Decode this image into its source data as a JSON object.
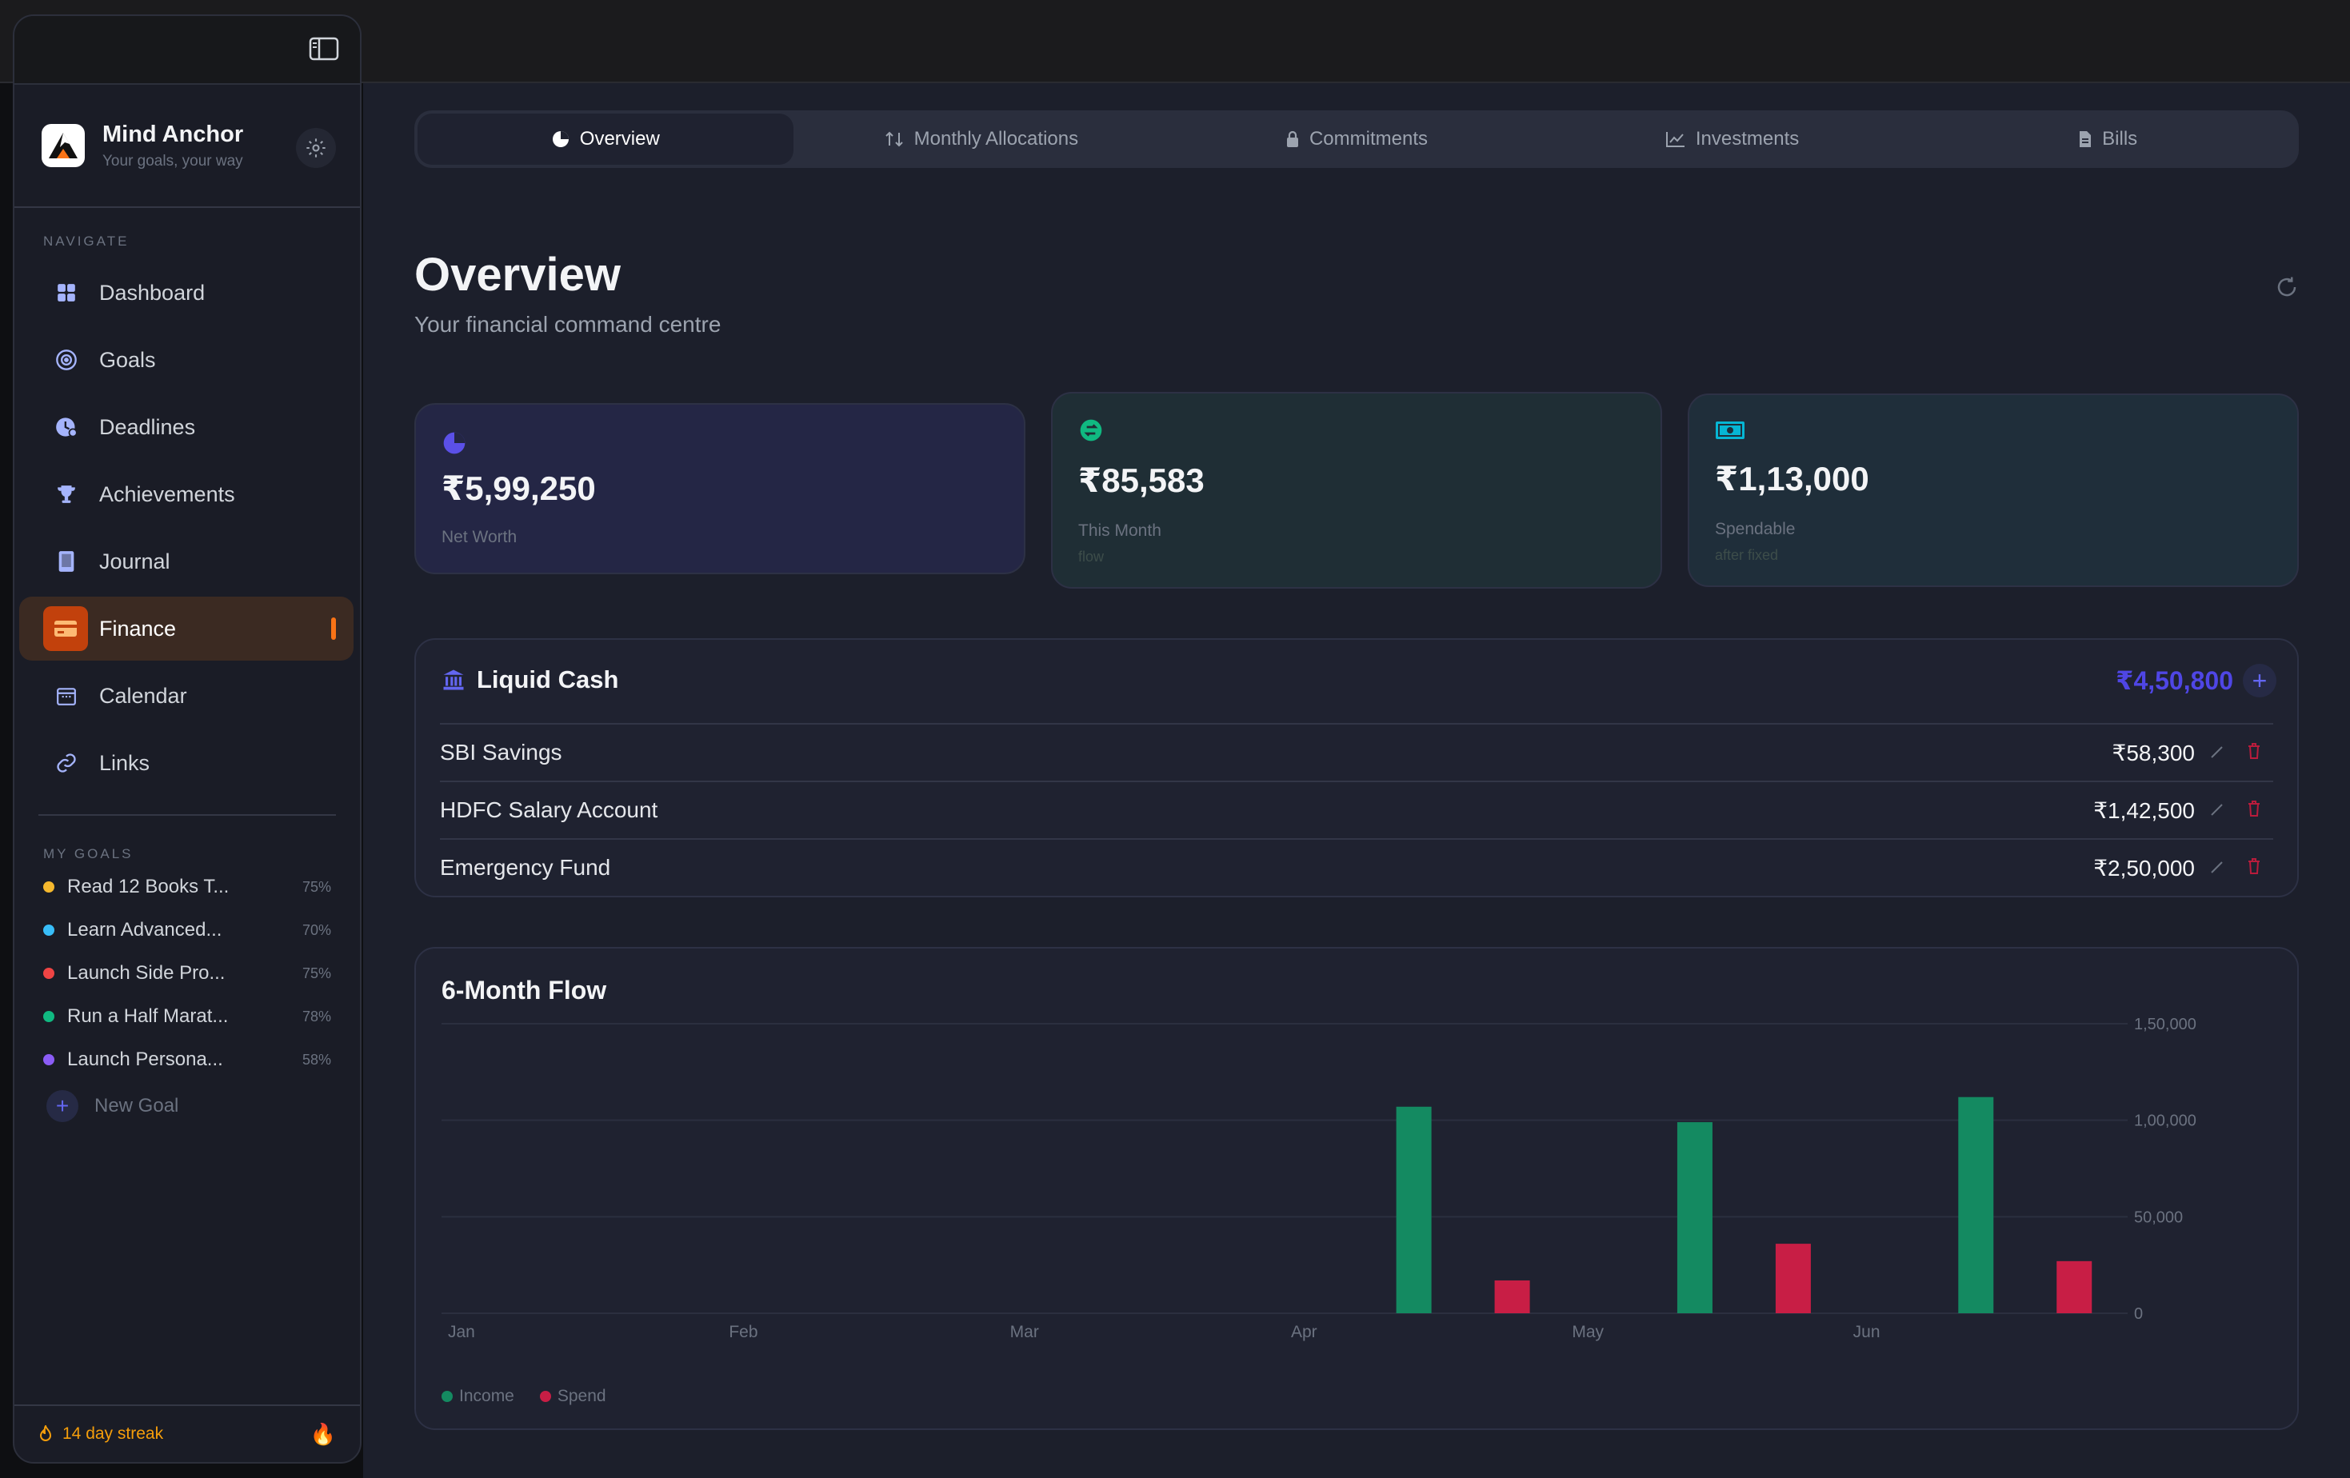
{
  "sidebar": {
    "brand_name": "Mind Anchor",
    "brand_tagline": "Your goals, your way",
    "navigate_label": "NAVIGATE",
    "nav_items": [
      {
        "label": "Dashboard",
        "icon": "grid-icon"
      },
      {
        "label": "Goals",
        "icon": "target-icon"
      },
      {
        "label": "Deadlines",
        "icon": "clock-icon"
      },
      {
        "label": "Achievements",
        "icon": "trophy-icon"
      },
      {
        "label": "Journal",
        "icon": "book-icon"
      },
      {
        "label": "Finance",
        "icon": "card-icon",
        "active": true
      },
      {
        "label": "Calendar",
        "icon": "calendar-icon"
      },
      {
        "label": "Links",
        "icon": "link-icon"
      }
    ],
    "my_goals_label": "MY GOALS",
    "goals": [
      {
        "name": "Read 12 Books T...",
        "pct": "75%",
        "color": "#f5b82e"
      },
      {
        "name": "Learn Advanced...",
        "pct": "70%",
        "color": "#38bdf8"
      },
      {
        "name": "Launch Side Pro...",
        "pct": "75%",
        "color": "#ef4444"
      },
      {
        "name": "Run a Half Marat...",
        "pct": "78%",
        "color": "#10b981"
      },
      {
        "name": "Launch Persona...",
        "pct": "58%",
        "color": "#8b5cf6"
      }
    ],
    "new_goal_label": "New Goal",
    "streak_label": "14 day streak"
  },
  "tabs": [
    {
      "label": "Overview",
      "active": true
    },
    {
      "label": "Monthly Allocations"
    },
    {
      "label": "Commitments"
    },
    {
      "label": "Investments"
    },
    {
      "label": "Bills"
    }
  ],
  "page": {
    "title": "Overview",
    "subtitle": "Your financial command centre"
  },
  "stats": [
    {
      "value": "₹5,99,250",
      "label": "Net Worth",
      "sub": ""
    },
    {
      "value": "₹85,583",
      "label": "This Month",
      "sub": "flow"
    },
    {
      "value": "₹1,13,000",
      "label": "Spendable",
      "sub": "after fixed"
    }
  ],
  "liquid_cash": {
    "title": "Liquid Cash",
    "total": "₹4,50,800",
    "accounts": [
      {
        "name": "SBI Savings",
        "amount": "₹58,300"
      },
      {
        "name": "HDFC Salary Account",
        "amount": "₹1,42,500"
      },
      {
        "name": "Emergency Fund",
        "amount": "₹2,50,000"
      }
    ]
  },
  "flow_chart": {
    "title": "6-Month Flow"
  },
  "chart_data": {
    "type": "bar",
    "categories": [
      "Jan",
      "Feb",
      "Mar",
      "Apr",
      "May",
      "Jun"
    ],
    "series": [
      {
        "name": "Income",
        "color": "#148a61",
        "values": [
          0,
          0,
          0,
          107000,
          99000,
          112000
        ]
      },
      {
        "name": "Spend",
        "color": "#c81e45",
        "values": [
          0,
          0,
          0,
          17000,
          36000,
          27000
        ]
      }
    ],
    "ylim": [
      0,
      150000
    ],
    "yticks": [
      "0",
      "50,000",
      "1,00,000",
      "1,50,000"
    ],
    "ytick_values": [
      0,
      50000,
      100000,
      150000
    ],
    "grid": true,
    "legend": "bottom-left"
  }
}
